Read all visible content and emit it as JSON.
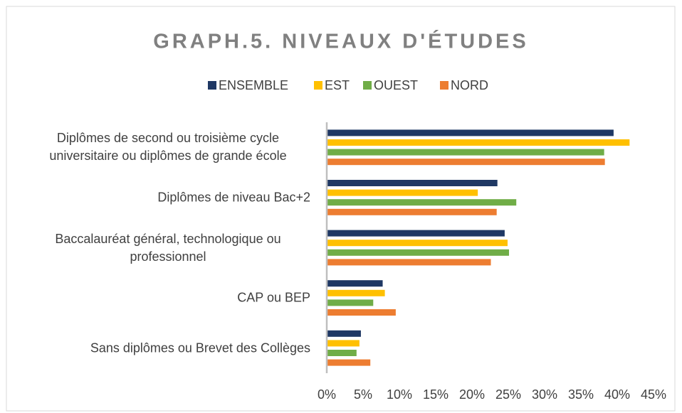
{
  "chart_data": {
    "type": "hbar",
    "title": "GRAPH.5. NIVEAUX D'ÉTUDES",
    "categories": [
      "Diplômes de second ou troisième cycle universitaire ou diplômes de grande école",
      "Diplômes de niveau Bac+2",
      "Baccalauréat général, technologique ou professionnel",
      "CAP ou BEP",
      "Sans diplômes ou Brevet des Collèges"
    ],
    "series": [
      {
        "name": "ENSEMBLE",
        "color": "#1f3864",
        "values": [
          39.5,
          23.5,
          24.5,
          7.7,
          4.7
        ]
      },
      {
        "name": "EST",
        "color": "#ffc000",
        "values": [
          41.7,
          20.8,
          24.9,
          8.0,
          4.5
        ]
      },
      {
        "name": "OUEST",
        "color": "#70ad47",
        "values": [
          38.2,
          26.1,
          25.1,
          6.4,
          4.1
        ]
      },
      {
        "name": "NORD",
        "color": "#ed7d31",
        "values": [
          38.3,
          23.4,
          22.6,
          9.5,
          6.0
        ]
      }
    ],
    "xlim": [
      0,
      45
    ],
    "xticks": [
      {
        "value": 0,
        "label": "0%"
      },
      {
        "value": 5,
        "label": "5%"
      },
      {
        "value": 10,
        "label": "10%"
      },
      {
        "value": 15,
        "label": "15%"
      },
      {
        "value": 20,
        "label": "20%"
      },
      {
        "value": 25,
        "label": "25%"
      },
      {
        "value": 30,
        "label": "30%"
      },
      {
        "value": 35,
        "label": "35%"
      },
      {
        "value": 40,
        "label": "40%"
      },
      {
        "value": 45,
        "label": "45%"
      }
    ],
    "legend": "top",
    "grid": false
  }
}
